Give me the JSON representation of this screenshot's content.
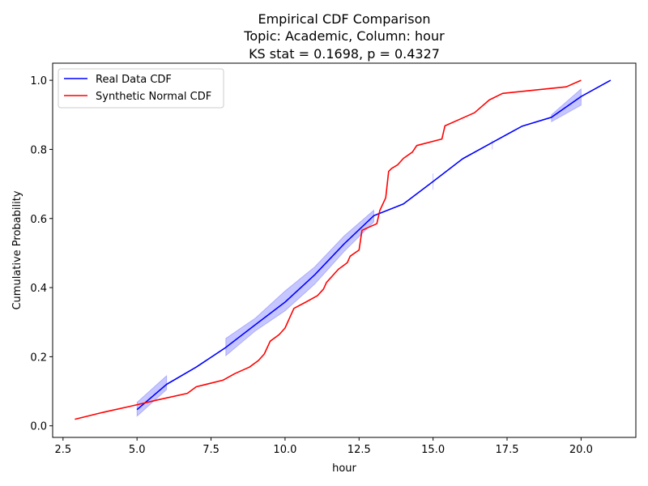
{
  "chart_data": {
    "type": "line",
    "title": [
      "Empirical CDF Comparison",
      "Topic: Academic, Column: hour",
      "KS stat = 0.1698, p = 0.4327"
    ],
    "xlabel": "hour",
    "ylabel": "Cumulative Probability",
    "xlim": [
      2.15,
      21.85
    ],
    "ylim": [
      -0.0335,
      1.0495
    ],
    "xticks": [
      "2.5",
      "5.0",
      "7.5",
      "10.0",
      "12.5",
      "15.0",
      "17.5",
      "20.0"
    ],
    "yticks": [
      "0.0",
      "0.2",
      "0.4",
      "0.6",
      "0.8",
      "1.0"
    ],
    "grid": false,
    "legend_position": "upper left",
    "series": [
      {
        "name": "Real Data CDF",
        "color": "#0000ff",
        "x": [
          5,
          6,
          7,
          8,
          9,
          10,
          11,
          12,
          13,
          14,
          15,
          16,
          17,
          18,
          19,
          20,
          21
        ],
        "y": [
          0.047,
          0.12,
          0.17,
          0.227,
          0.293,
          0.358,
          0.437,
          0.527,
          0.608,
          0.642,
          0.707,
          0.773,
          0.82,
          0.867,
          0.893,
          0.953,
          1.0
        ]
      },
      {
        "name": "Synthetic Normal CDF",
        "color": "#ff0000",
        "x": [
          2.9,
          3.8,
          4.8,
          5.7,
          6.7,
          7.0,
          7.9,
          8.3,
          8.8,
          9.1,
          9.3,
          9.5,
          9.8,
          10.0,
          10.2,
          10.3,
          10.7,
          11.1,
          11.3,
          11.4,
          11.8,
          12.1,
          12.2,
          12.5,
          12.6,
          13.1,
          13.2,
          13.4,
          13.5,
          13.6,
          13.8,
          14.0,
          14.3,
          14.45,
          15.3,
          15.4,
          15.9,
          16.4,
          16.9,
          17.35,
          19.5,
          20.0
        ],
        "y": [
          0.019,
          0.038,
          0.057,
          0.075,
          0.094,
          0.113,
          0.132,
          0.151,
          0.17,
          0.189,
          0.208,
          0.245,
          0.264,
          0.283,
          0.321,
          0.34,
          0.358,
          0.377,
          0.396,
          0.415,
          0.453,
          0.472,
          0.491,
          0.509,
          0.566,
          0.585,
          0.623,
          0.66,
          0.736,
          0.745,
          0.755,
          0.774,
          0.792,
          0.811,
          0.83,
          0.868,
          0.887,
          0.906,
          0.943,
          0.962,
          0.981,
          1.0
        ]
      }
    ],
    "confidence_band": {
      "color": "#0000ff",
      "opacity": 0.22,
      "segments": [
        {
          "x": [
            5,
            6
          ],
          "lower": [
            0.028,
            0.105
          ],
          "upper": [
            0.068,
            0.145
          ]
        },
        {
          "x": [
            8,
            9,
            10,
            11,
            12,
            13
          ],
          "lower": [
            0.203,
            0.275,
            0.333,
            0.41,
            0.505,
            0.59
          ],
          "upper": [
            0.253,
            0.312,
            0.39,
            0.46,
            0.55,
            0.624
          ]
        },
        {
          "x": [
            15,
            15
          ],
          "lower": [
            0.683,
            0.683
          ],
          "upper": [
            0.73,
            0.73
          ]
        },
        {
          "x": [
            17,
            17
          ],
          "lower": [
            0.8,
            0.8
          ],
          "upper": [
            0.826,
            0.826
          ]
        },
        {
          "x": [
            19,
            20
          ],
          "lower": [
            0.88,
            0.928
          ],
          "upper": [
            0.9,
            0.975
          ]
        }
      ]
    }
  }
}
